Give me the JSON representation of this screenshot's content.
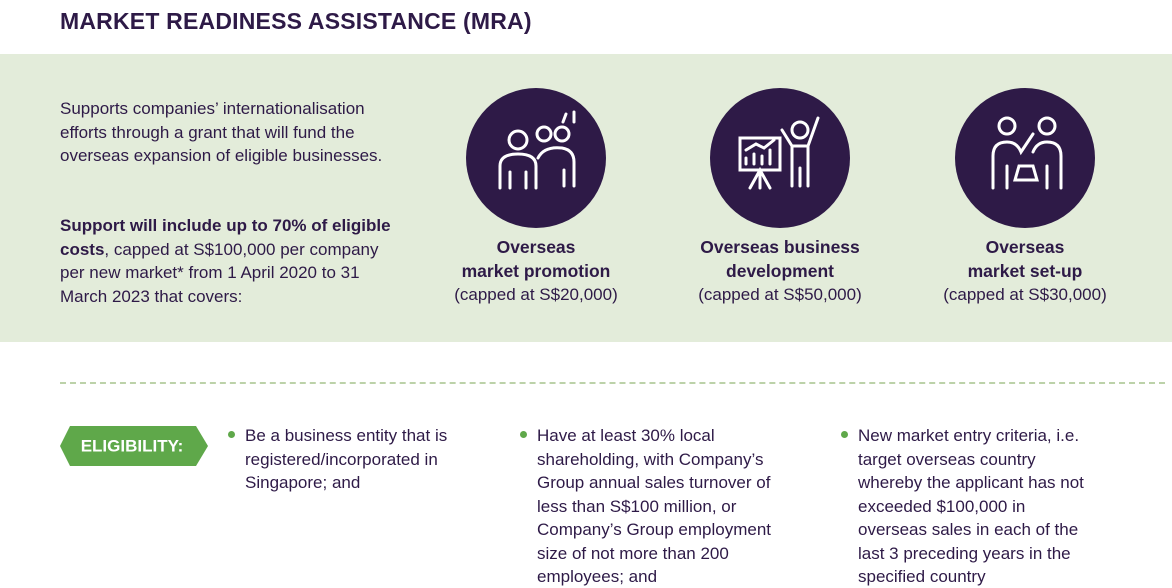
{
  "header": {
    "title": "MARKET READINESS ASSISTANCE (MRA)"
  },
  "intro": {
    "description": "Supports companies’ internationalisation efforts through a grant that will fund the overseas expansion of eligible businesses.",
    "support_bold": "Support will include up to 70% of eligible costs",
    "support_rest": ", capped at S$100,000 per company per new market* from 1 April 2020 to 31 March 2023 that covers:"
  },
  "cards": [
    {
      "title_lines": [
        "Overseas",
        "market promotion"
      ],
      "cap": "(capped at S$20,000)"
    },
    {
      "title_lines": [
        "Overseas business",
        "development"
      ],
      "cap": "(capped at S$50,000)"
    },
    {
      "title_lines": [
        "Overseas",
        "market set-up"
      ],
      "cap": "(capped at S$30,000)"
    }
  ],
  "eligibility": {
    "label": "ELIGIBILITY:",
    "items": [
      "Be a business entity that is registered/incorporated in Singapore; and",
      "Have at least 30% local shareholding, with Company’s Group annual sales turnover of less than S$100 million, or Company’s Group employment size of not more than 200 employees; and",
      "New market entry criteria, i.e. target overseas country whereby the applicant has not exceeded $100,000 in overseas sales in each of the last 3 preceding years in the specified country"
    ]
  }
}
